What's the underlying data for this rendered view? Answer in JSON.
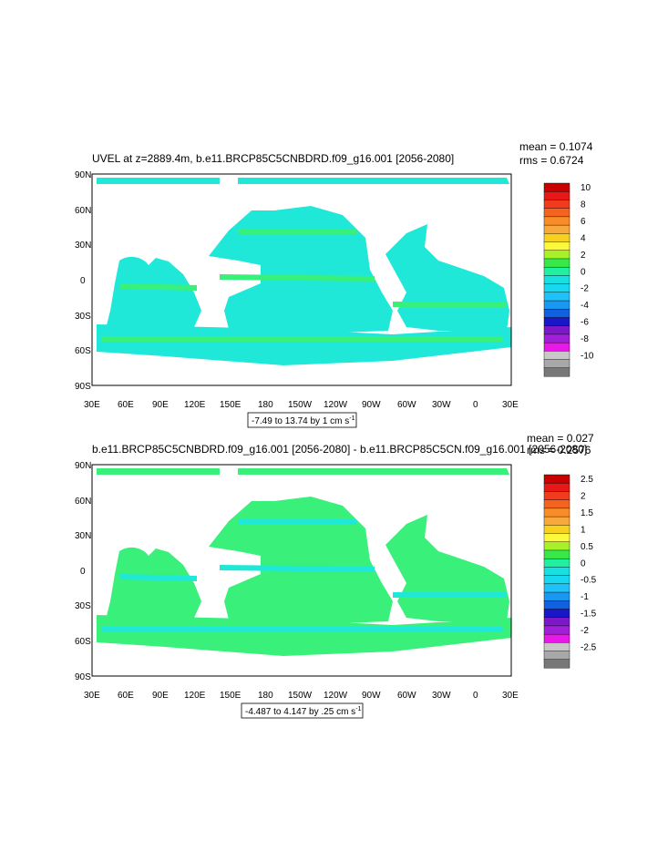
{
  "colors": {
    "ocean_land": "#ffffff",
    "field_main": "#1fe8d8",
    "field_alt": "#38f07a",
    "frame": "#000000"
  },
  "panels": [
    {
      "title": "UVEL at z=2889.4m, b.e11.BRCP85C5CNBDRD.f09_g16.001 [2056-2080]",
      "mean_label": "mean = 0.1074",
      "rms_label": "rms = 0.6724",
      "x_ticks": [
        "30E",
        "60E",
        "90E",
        "120E",
        "150E",
        "180",
        "150W",
        "120W",
        "90W",
        "60W",
        "30W",
        "0",
        "30E"
      ],
      "y_ticks": [
        "90N",
        "60N",
        "30N",
        "0",
        "30S",
        "60S",
        "90S"
      ],
      "info_text": "-7.49 to 13.74 by 1 cm s",
      "info_sup": "-1",
      "colorbar": {
        "labels": [
          "10",
          "8",
          "6",
          "4",
          "2",
          "0",
          "-2",
          "-4",
          "-6",
          "-8",
          "-10"
        ],
        "colors": [
          "#c80000",
          "#e81818",
          "#f03c1c",
          "#f4641e",
          "#f88c28",
          "#f8a83c",
          "#f8d020",
          "#fcf83c",
          "#a8f028",
          "#38e848",
          "#20f0a0",
          "#18e0e0",
          "#18d8f0",
          "#20c0f8",
          "#1898f0",
          "#1060e0",
          "#1818c8",
          "#7c18c8",
          "#a020d8",
          "#e818e8",
          "#c8c8c8",
          "#a8a8a8",
          "#787878"
        ]
      },
      "field_color": "#1fe8d8",
      "accent_color": "#38f07a"
    },
    {
      "title": "b.e11.BRCP85C5CNBDRD.f09_g16.001 [2056-2080] - b.e11.BRCP85C5CN.f09_g16.001 [2056-2080]",
      "mean_label": "mean = 0.027",
      "rms_label": "rms = 0.2576",
      "x_ticks": [
        "30E",
        "60E",
        "90E",
        "120E",
        "150E",
        "180",
        "150W",
        "120W",
        "90W",
        "60W",
        "30W",
        "0",
        "30E"
      ],
      "y_ticks": [
        "90N",
        "60N",
        "30N",
        "0",
        "30S",
        "60S",
        "90S"
      ],
      "info_text": "-4.487 to 4.147 by .25 cm s",
      "info_sup": "-1",
      "colorbar": {
        "labels": [
          "2.5",
          "2",
          "1.5",
          "1",
          "0.5",
          "0",
          "-0.5",
          "-1",
          "-1.5",
          "-2",
          "-2.5"
        ],
        "colors": [
          "#c80000",
          "#e81818",
          "#f03c1c",
          "#f4641e",
          "#f88c28",
          "#f8a83c",
          "#f8d020",
          "#fcf83c",
          "#a8f028",
          "#38e848",
          "#20f0a0",
          "#18e0e0",
          "#18d8f0",
          "#20c0f8",
          "#1898f0",
          "#1060e0",
          "#1818c8",
          "#7c18c8",
          "#a020d8",
          "#e818e8",
          "#c8c8c8",
          "#a8a8a8",
          "#787878"
        ]
      },
      "field_color": "#38f07a",
      "accent_color": "#1fe8d8"
    }
  ]
}
